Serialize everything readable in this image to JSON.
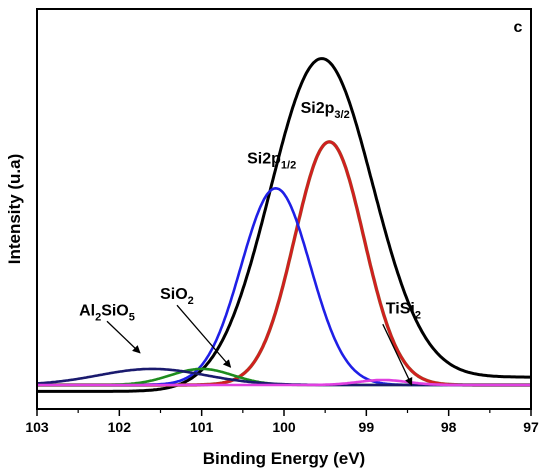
{
  "chart_data": {
    "type": "line",
    "panel_label": "c",
    "xlabel": "Binding Energy (eV)",
    "ylabel": "Intensity (u.a)",
    "xlim": [
      103,
      97
    ],
    "x_reversed": true,
    "ylim": [
      0,
      1
    ],
    "y_tick_labels": false,
    "grid": false,
    "x_ticks": [
      103,
      102,
      101,
      100,
      99,
      98,
      97
    ],
    "background": 0.04,
    "series": [
      {
        "key": "envelope",
        "color": "#000000",
        "peaks": [
          [
            0.92,
            99.55,
            0.62
          ]
        ]
      },
      {
        "key": "si2p32",
        "color": "#d21f1f",
        "outline": "#8b5a2b",
        "peaks": [
          [
            0.68,
            99.45,
            0.42
          ]
        ]
      },
      {
        "key": "si2p12",
        "color": "#1f1fe6",
        "peaks": [
          [
            0.55,
            100.1,
            0.42
          ]
        ]
      },
      {
        "key": "sio2",
        "color": "#1e8c1e",
        "peaks": [
          [
            0.045,
            101.0,
            0.38
          ]
        ]
      },
      {
        "key": "al2sio5",
        "color": "#1a1a6e",
        "peaks": [
          [
            0.045,
            101.6,
            0.65
          ]
        ]
      },
      {
        "key": "tisi2",
        "color": "#e040e0",
        "peaks": [
          [
            0.014,
            98.8,
            0.3
          ]
        ]
      }
    ],
    "annotations": [
      {
        "key": "si2p32",
        "base": "Si2p",
        "sub": "3/2",
        "x": 99.5,
        "y": 0.76
      },
      {
        "key": "si2p12",
        "base": "Si2p",
        "sub": "1/2",
        "x": 100.15,
        "y": 0.62
      },
      {
        "key": "sio2",
        "base": "SiO",
        "sub": "2",
        "x": 101.3,
        "y": 0.24,
        "arrow_to": [
          100.65,
          0.05
        ]
      },
      {
        "key": "al2sio5",
        "parts": [
          [
            "Al",
            ""
          ],
          [
            "2",
            "sub"
          ],
          [
            "SiO",
            ""
          ],
          [
            "5",
            "sub"
          ]
        ],
        "x": 102.15,
        "y": 0.195,
        "arrow_to": [
          101.75,
          0.09
        ]
      },
      {
        "key": "tisi2",
        "base": "TiSi",
        "sub": "2",
        "x": 98.55,
        "y": 0.2,
        "arrow_from": [
          98.8,
          0.17
        ],
        "arrow_to": [
          98.45,
          0.0
        ]
      }
    ]
  }
}
